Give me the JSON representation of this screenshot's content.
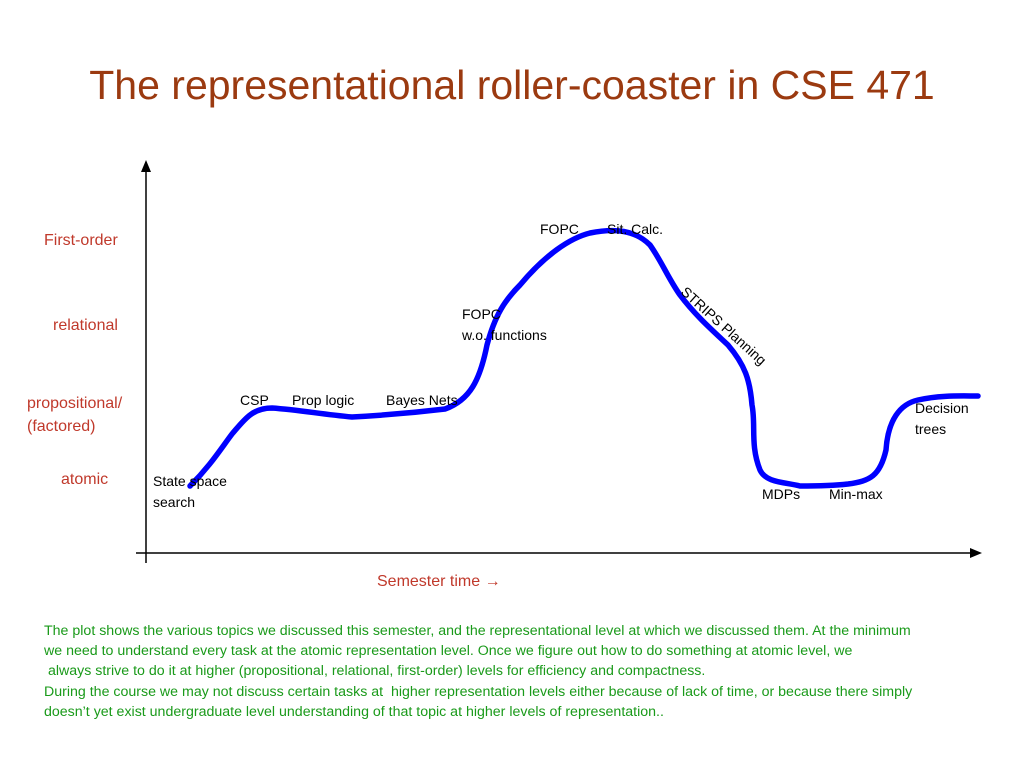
{
  "slide": {
    "title": "The representational  roller-coaster in CSE 471"
  },
  "diagram": {
    "levels": [
      {
        "id": "first-order",
        "label": "First-order"
      },
      {
        "id": "relational",
        "label": "relational"
      },
      {
        "id": "propositional",
        "label": "propositional/"
      },
      {
        "id": "factored",
        "label": "(factored)"
      },
      {
        "id": "atomic",
        "label": "atomic"
      }
    ],
    "x_axis_label": "Semester time",
    "x_axis_arrow": "→",
    "topics": [
      {
        "id": "state-space-search",
        "lines": [
          "State space",
          "search"
        ]
      },
      {
        "id": "csp",
        "lines": [
          "CSP"
        ]
      },
      {
        "id": "prop-logic",
        "lines": [
          "Prop logic"
        ]
      },
      {
        "id": "bayes-nets",
        "lines": [
          "Bayes Nets"
        ]
      },
      {
        "id": "fopc-wo-functions",
        "lines": [
          "FOPC",
          "w.o. functions"
        ]
      },
      {
        "id": "fopc",
        "lines": [
          "FOPC"
        ]
      },
      {
        "id": "sit-calc",
        "lines": [
          "Sit. Calc."
        ]
      },
      {
        "id": "strips-planning",
        "lines": [
          "STRIPS Planning"
        ]
      },
      {
        "id": "mdps",
        "lines": [
          "MDPs"
        ]
      },
      {
        "id": "min-max",
        "lines": [
          "Min-max"
        ]
      },
      {
        "id": "decision-trees",
        "lines": [
          "Decision",
          "trees"
        ]
      }
    ],
    "curve_color": "#0000ff",
    "level_label_color": "#c0392b"
  },
  "caption": {
    "lines": [
      "The plot shows the various topics we discussed this semester, and the representational level at which we discussed them. At the minimum",
      "we need to understand every task at the atomic representation level. Once we figure out how to do something at atomic level, we",
      " always strive to do it at higher (propositional, relational, first-order) levels for efficiency and compactness.",
      "During the course we may not discuss certain tasks at  higher representation levels either because of lack of time, or because there simply",
      "doesn’t yet exist undergraduate level understanding of that topic at higher levels of representation.."
    ],
    "color": "#1a9a1a"
  }
}
